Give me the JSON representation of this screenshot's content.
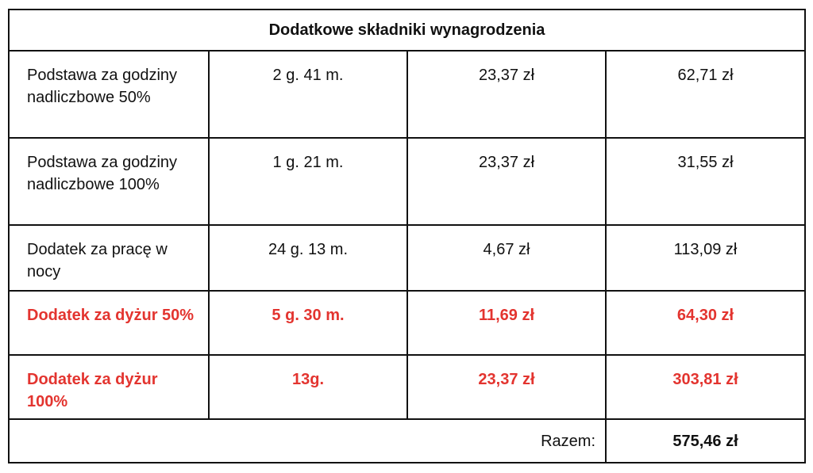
{
  "table": {
    "title": "Dodatkowe składniki wynagrodzenia",
    "rows": [
      {
        "cells": [
          "Podstawa za godziny nadliczbowe 50%",
          "2 g. 41 m.",
          "23,37 zł",
          "62,71 zł"
        ]
      },
      {
        "cells": [
          "Podstawa za godziny nadliczbowe 100%",
          "1 g. 21 m.",
          "23,37 zł",
          "31,55 zł"
        ]
      },
      {
        "cells": [
          "Dodatek za pracę w nocy",
          "24 g. 13 m.",
          "4,67 zł",
          "113,09 zł"
        ]
      },
      {
        "cells": [
          "Dodatek za dyżur 50%",
          "5 g. 30 m.",
          "11,69 zł",
          "64,30 zł"
        ],
        "color": "#e3342f",
        "bold": true
      },
      {
        "cells": [
          "Dodatek za dyżur 100%",
          "13g.",
          "23,37 zł",
          "303,81 zł"
        ],
        "color": "#e3342f",
        "bold": true
      }
    ],
    "total_label": "Razem:",
    "total": "575,46 zł"
  }
}
